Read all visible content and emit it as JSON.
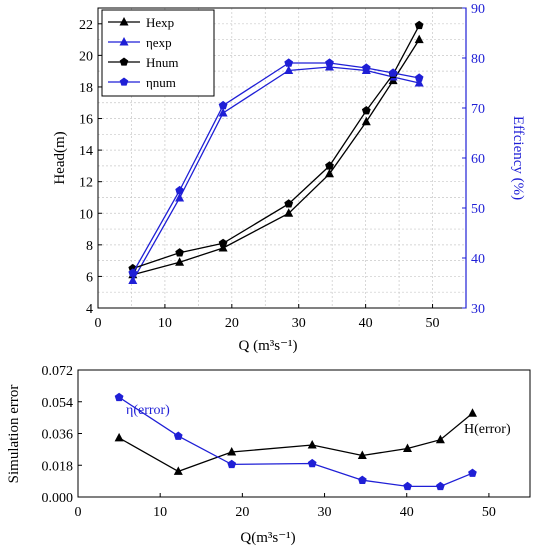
{
  "chart_data": [
    {
      "type": "line",
      "xlabel": "Q (m³s⁻¹)",
      "ylabel": "Head(m)",
      "y2label": "Effciency (%)",
      "xlim": [
        0,
        55
      ],
      "ylim": [
        4,
        23
      ],
      "y2lim": [
        30,
        90
      ],
      "xticks": [
        0,
        10,
        20,
        30,
        40,
        50
      ],
      "yticks": [
        4,
        6,
        8,
        10,
        12,
        14,
        16,
        18,
        20,
        22
      ],
      "y2ticks": [
        30,
        40,
        50,
        60,
        70,
        80,
        90
      ],
      "grid": true,
      "legend_position": "top-left",
      "series": [
        {
          "name": "Hexp",
          "axis": "left",
          "color": "#000000",
          "marker": "triangle",
          "x": [
            5.2,
            12.2,
            18.7,
            28.5,
            34.6,
            40.1,
            44.1,
            48.0
          ],
          "y": [
            6.1,
            6.9,
            7.8,
            10.0,
            12.5,
            15.8,
            18.4,
            21.0
          ]
        },
        {
          "name": "ηexp",
          "axis": "right",
          "color": "#1f1fd6",
          "marker": "triangle",
          "x": [
            5.2,
            12.2,
            18.7,
            28.5,
            34.6,
            40.1,
            44.1,
            48.0
          ],
          "y": [
            35.5,
            52.0,
            69.0,
            77.5,
            78.2,
            77.5,
            76.2,
            75.0
          ]
        },
        {
          "name": "Hnum",
          "axis": "left",
          "color": "#000000",
          "marker": "pentagon",
          "x": [
            5.2,
            12.2,
            18.7,
            28.5,
            34.6,
            40.1,
            44.1,
            48.0
          ],
          "y": [
            6.5,
            7.5,
            8.1,
            10.6,
            13.0,
            16.5,
            18.8,
            21.9
          ]
        },
        {
          "name": "ηnum",
          "axis": "right",
          "color": "#1f1fd6",
          "marker": "pentagon",
          "x": [
            5.2,
            12.2,
            18.7,
            28.5,
            34.6,
            40.1,
            44.1,
            48.0
          ],
          "y": [
            37.0,
            53.5,
            70.5,
            79.0,
            79.0,
            78.0,
            77.0,
            76.0
          ]
        }
      ]
    },
    {
      "type": "line",
      "xlabel": "Q(m³s⁻¹)",
      "ylabel": "Simulation error",
      "xlim": [
        0,
        55
      ],
      "ylim": [
        0,
        0.072
      ],
      "xticks": [
        0,
        10,
        20,
        30,
        40,
        50
      ],
      "yticks": [
        "0.000",
        "0.018",
        "0.036",
        "0.054",
        "0.072"
      ],
      "grid": false,
      "series": [
        {
          "name": "H(error)",
          "color": "#000000",
          "marker": "triangle",
          "x": [
            5.0,
            12.2,
            18.7,
            28.5,
            34.6,
            40.1,
            44.1,
            48.0
          ],
          "y": [
            0.0335,
            0.0145,
            0.0255,
            0.0295,
            0.0235,
            0.0275,
            0.0325,
            0.0475
          ]
        },
        {
          "name": "η(error)",
          "color": "#1f1fd6",
          "marker": "pentagon",
          "x": [
            5.0,
            12.2,
            18.7,
            28.5,
            34.6,
            40.1,
            44.1,
            48.0
          ],
          "y": [
            0.0565,
            0.0345,
            0.0185,
            0.019,
            0.0095,
            0.006,
            0.006,
            0.0135
          ]
        }
      ]
    }
  ]
}
